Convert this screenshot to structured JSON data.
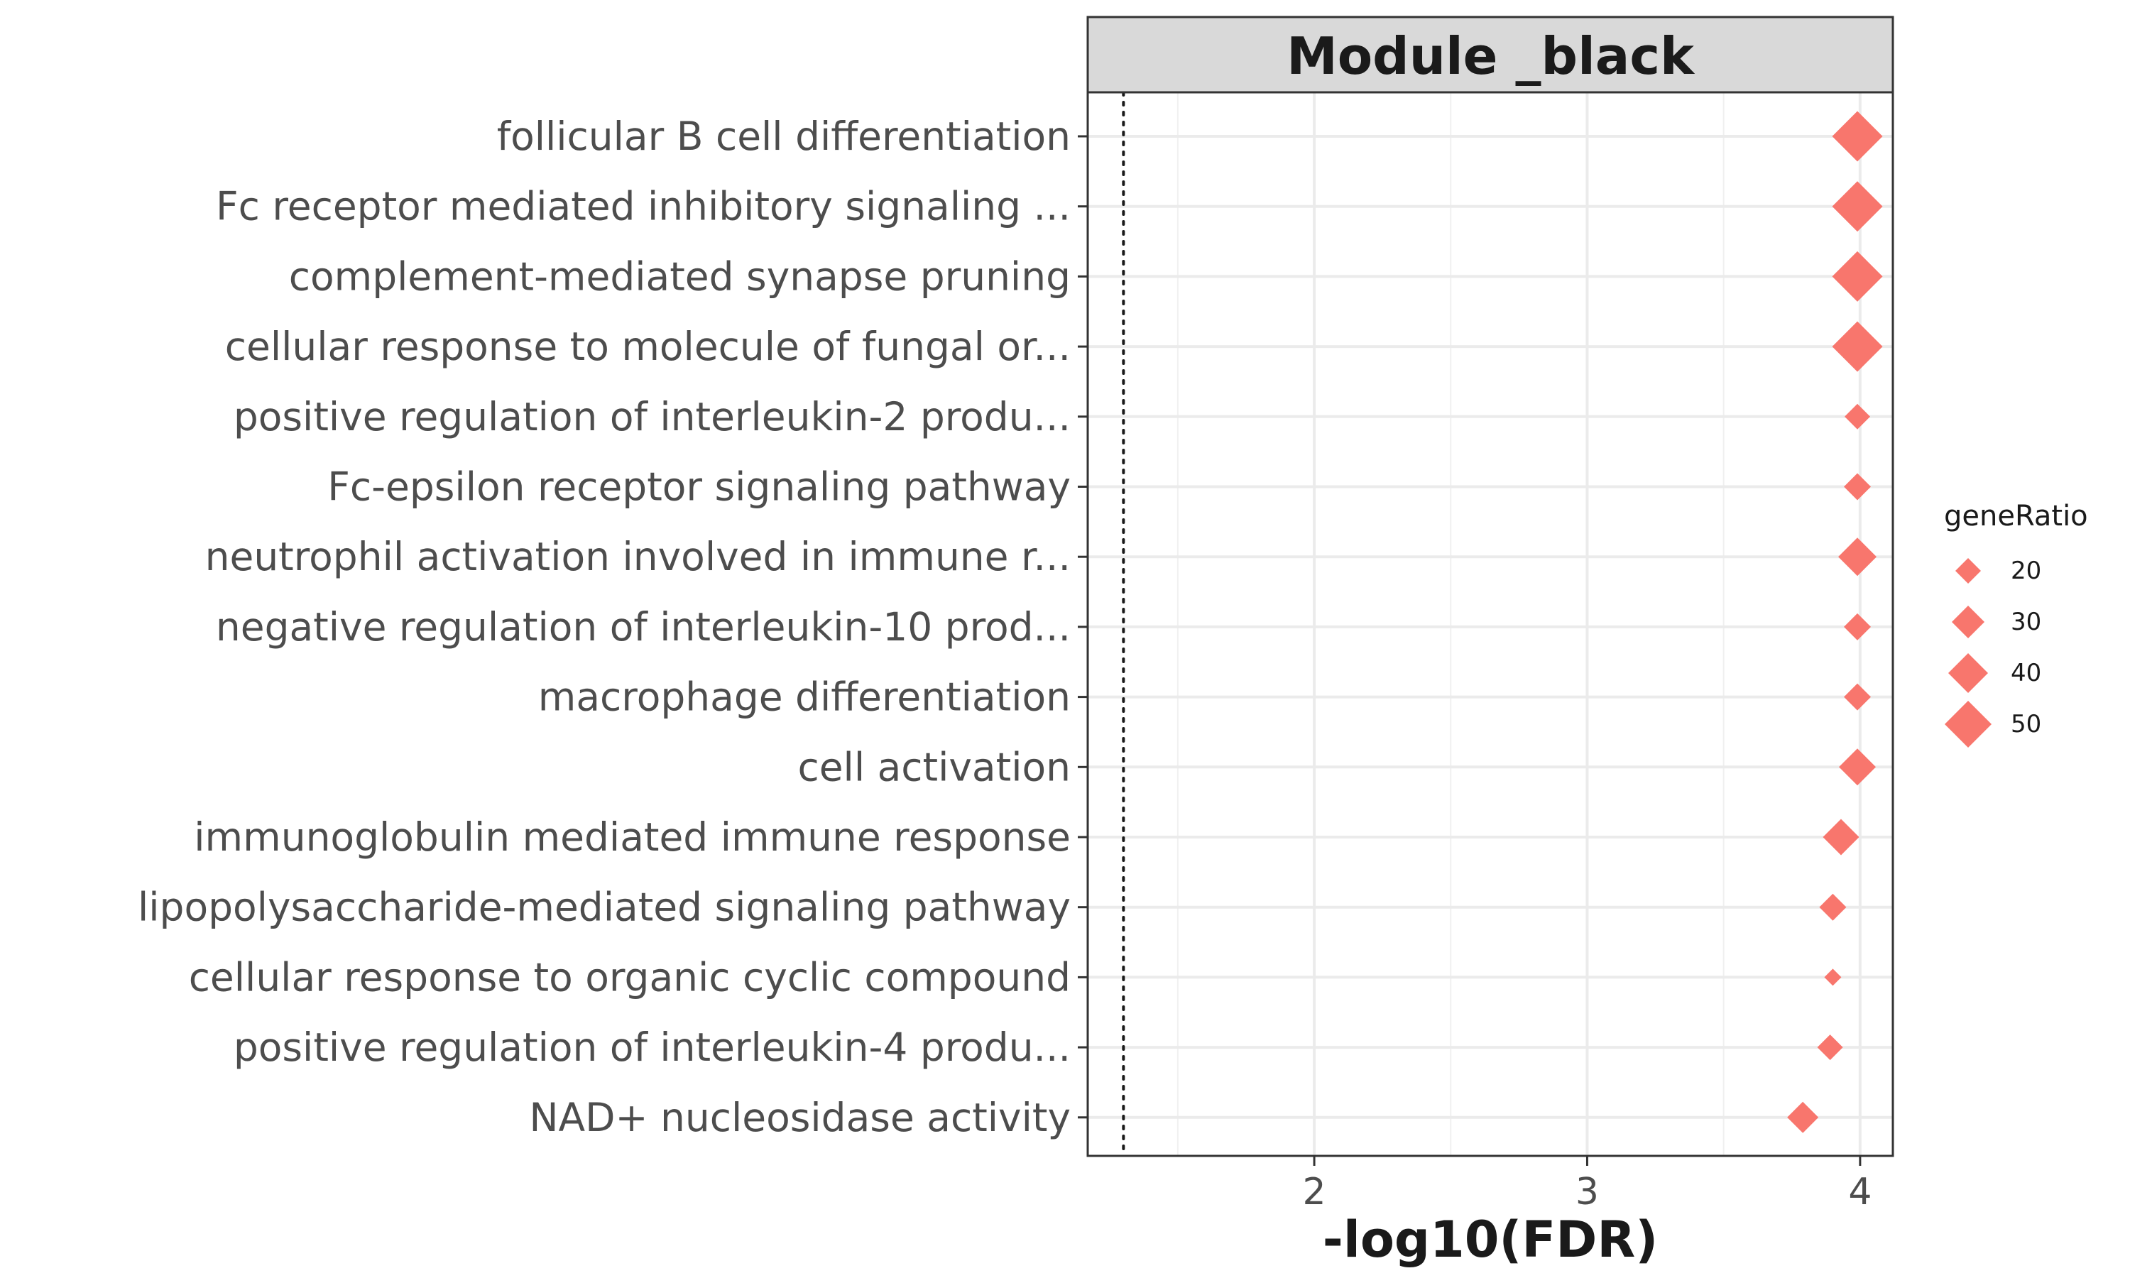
{
  "chart_data": {
    "type": "scatter",
    "facet_title": "Module _black",
    "xlabel": "-log10(FDR)",
    "ylabel": "",
    "xlim": [
      1.17,
      4.12
    ],
    "xticks": [
      2,
      3,
      4
    ],
    "reference_line_x": 1.301,
    "marker": "diamond",
    "color": "#F8766D",
    "grid": true,
    "legend": {
      "title": "geneRatio",
      "placement": "right",
      "entries": [
        {
          "label": "20",
          "value": 20
        },
        {
          "label": "30",
          "value": 30
        },
        {
          "label": "40",
          "value": 40
        },
        {
          "label": "50",
          "value": 50
        }
      ]
    },
    "points": [
      {
        "term": "follicular B cell differentiation",
        "x": 3.99,
        "geneRatio": 55
      },
      {
        "term": "Fc receptor mediated inhibitory signaling ...",
        "x": 3.99,
        "geneRatio": 55
      },
      {
        "term": "complement-mediated synapse pruning",
        "x": 3.99,
        "geneRatio": 55
      },
      {
        "term": "cellular response to molecule of fungal or...",
        "x": 3.99,
        "geneRatio": 55
      },
      {
        "term": "positive regulation of interleukin-2 produ...",
        "x": 3.99,
        "geneRatio": 20
      },
      {
        "term": "Fc-epsilon receptor signaling pathway",
        "x": 3.99,
        "geneRatio": 22
      },
      {
        "term": "neutrophil activation involved in immune r...",
        "x": 3.99,
        "geneRatio": 38
      },
      {
        "term": "negative regulation of interleukin-10 prod...",
        "x": 3.99,
        "geneRatio": 22
      },
      {
        "term": "macrophage differentiation",
        "x": 3.99,
        "geneRatio": 22
      },
      {
        "term": "cell activation",
        "x": 3.99,
        "geneRatio": 36
      },
      {
        "term": "immunoglobulin mediated immune response",
        "x": 3.93,
        "geneRatio": 35
      },
      {
        "term": "lipopolysaccharide-mediated signaling pathway",
        "x": 3.9,
        "geneRatio": 22
      },
      {
        "term": "cellular response to organic cyclic compound",
        "x": 3.9,
        "geneRatio": 8
      },
      {
        "term": "positive regulation of interleukin-4 produ...",
        "x": 3.89,
        "geneRatio": 20
      },
      {
        "term": "NAD+ nucleosidase activity",
        "x": 3.79,
        "geneRatio": 28
      }
    ]
  }
}
